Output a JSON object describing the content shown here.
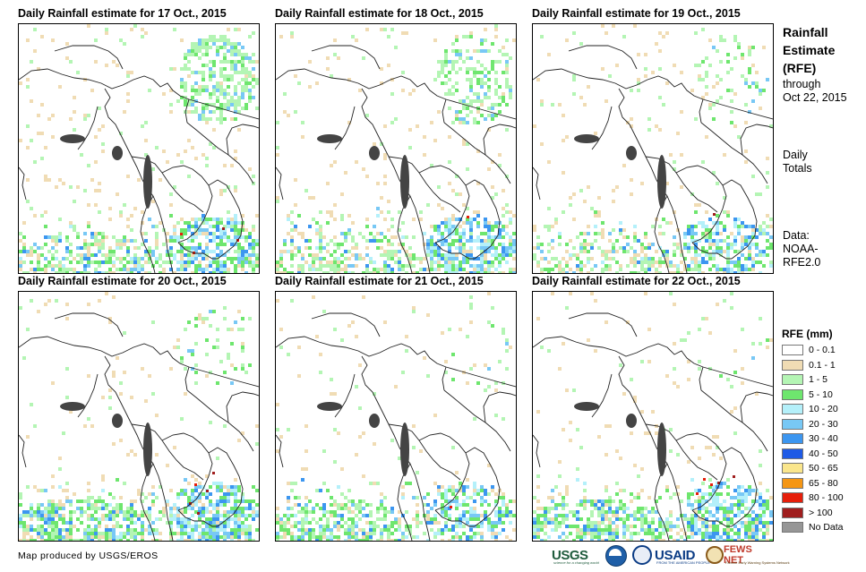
{
  "panels": [
    {
      "title": "Daily Rainfall estimate for 17 Oct., 2015",
      "profile": {
        "seed": 17,
        "ne_cloud": 1.0,
        "south": 0.8,
        "sw_sea": 0.5,
        "scatter": 0.6
      }
    },
    {
      "title": "Daily Rainfall estimate for 18 Oct., 2015",
      "profile": {
        "seed": 18,
        "ne_cloud": 0.7,
        "south": 0.85,
        "sw_sea": 0.4,
        "scatter": 0.55
      }
    },
    {
      "title": "Daily Rainfall estimate for 19 Oct., 2015",
      "profile": {
        "seed": 19,
        "ne_cloud": 0.2,
        "south": 0.7,
        "sw_sea": 0.3,
        "scatter": 0.55
      }
    },
    {
      "title": "Daily Rainfall estimate for 20 Oct., 2015",
      "profile": {
        "seed": 20,
        "ne_cloud": 0.15,
        "south": 0.95,
        "sw_sea": 0.9,
        "scatter": 0.35
      }
    },
    {
      "title": "Daily Rainfall estimate for 21 Oct., 2015",
      "profile": {
        "seed": 21,
        "ne_cloud": 0.1,
        "south": 0.7,
        "sw_sea": 0.8,
        "scatter": 0.3
      }
    },
    {
      "title": "Daily Rainfall estimate for 22 Oct., 2015",
      "profile": {
        "seed": 22,
        "ne_cloud": 0.1,
        "south": 0.95,
        "sw_sea": 0.9,
        "scatter": 0.35
      }
    }
  ],
  "sidebar": {
    "title_line1": "Rainfall",
    "title_line2": "Estimate",
    "title_line3": "(RFE)",
    "through_line1": "through",
    "through_line2": "Oct 22, 2015",
    "daily_line1": "Daily",
    "daily_line2": "Totals",
    "data_line1": "Data:",
    "data_line2": "NOAA-",
    "data_line3": "RFE2.0"
  },
  "legend": {
    "title": "RFE (mm)",
    "items": [
      {
        "label": "0 - 0.1",
        "color": "#ffffff"
      },
      {
        "label": "0.1 - 1",
        "color": "#f0dcb4"
      },
      {
        "label": "1 - 5",
        "color": "#b4f5b4"
      },
      {
        "label": "5 - 10",
        "color": "#6ee66e"
      },
      {
        "label": "10 - 20",
        "color": "#b4f0fa"
      },
      {
        "label": "20 - 30",
        "color": "#78c8f5"
      },
      {
        "label": "30 - 40",
        "color": "#3c96f0"
      },
      {
        "label": "40 - 50",
        "color": "#1e5ae6"
      },
      {
        "label": "50 - 65",
        "color": "#fae68c"
      },
      {
        "label": "65 - 80",
        "color": "#f59614"
      },
      {
        "label": "80 - 100",
        "color": "#e61e0a"
      },
      {
        "label": "> 100",
        "color": "#a01e1e"
      },
      {
        "label": "No Data",
        "color": "#969696"
      }
    ]
  },
  "footer": {
    "credit": "Map produced by USGS/EROS",
    "logos": {
      "usgs": "USGS",
      "usgs_tagline": "science for a changing world",
      "usaid": "USAID",
      "usaid_tagline": "FROM THE AMERICAN PEOPLE",
      "fews": "FEWS NET",
      "fews_tagline": "Famine Early Warning Systems Network"
    }
  }
}
